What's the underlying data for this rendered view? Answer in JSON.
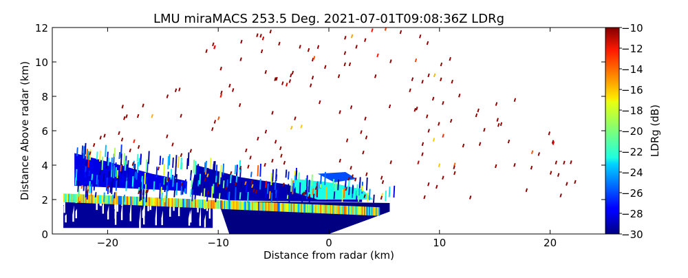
{
  "chart_data": {
    "type": "heatmap",
    "title": "LMU miraMACS 253.5 Deg. 2021-07-01T09:08:36Z  LDRg",
    "xlabel": "Distance from radar (km)",
    "ylabel": "Distance Above radar  (km)",
    "xlim": [
      -25,
      25
    ],
    "ylim": [
      0,
      12
    ],
    "xticks": [
      -20,
      -10,
      0,
      10,
      20
    ],
    "xtick_labels": [
      "−20",
      "−10",
      "0",
      "10",
      "20"
    ],
    "yticks": [
      0,
      2,
      4,
      6,
      8,
      10,
      12
    ],
    "ytick_labels": [
      "0",
      "2",
      "4",
      "6",
      "8",
      "10",
      "12"
    ],
    "colorbar": {
      "label": "LDRg (dB)",
      "colormap": "jet",
      "range": [
        -30,
        -10
      ],
      "ticks": [
        -10,
        -12,
        -14,
        -16,
        -18,
        -20,
        -22,
        -24,
        -26,
        -28,
        -30
      ],
      "tick_labels": [
        "−10",
        "−12",
        "−14",
        "−16",
        "−18",
        "−20",
        "−22",
        "−24",
        "−26",
        "−28",
        "−30"
      ]
    },
    "features": [
      {
        "name": "low-LDR cloud/precip region",
        "x_range": [
          -24,
          5.5
        ],
        "y_range": [
          0,
          4.6
        ],
        "ldr_db": -29
      },
      {
        "name": "melting layer bright band",
        "x_range": [
          -24,
          5
        ],
        "y_range": [
          1.4,
          2.4
        ],
        "ldr_db": -19
      },
      {
        "name": "scattered high-LDR echoes",
        "x_range": [
          -23,
          23
        ],
        "y_range": [
          2,
          12
        ],
        "ldr_db": -10
      }
    ]
  }
}
